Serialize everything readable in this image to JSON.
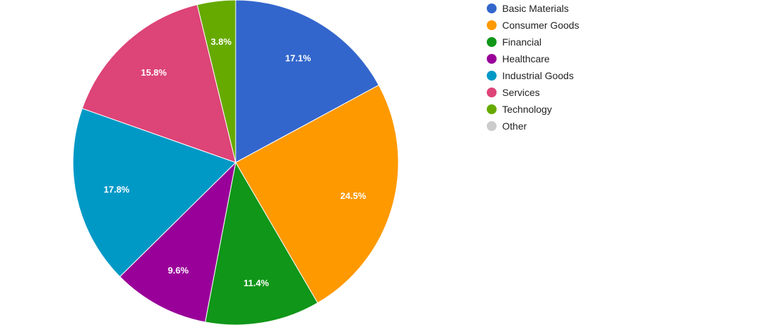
{
  "chart_data": {
    "type": "pie",
    "title": "",
    "slices": [
      {
        "label": "Basic Materials",
        "value": 17.1,
        "display": "17.1%",
        "color": "#3366cc"
      },
      {
        "label": "Consumer Goods",
        "value": 24.5,
        "display": "24.5%",
        "color": "#ff9900"
      },
      {
        "label": "Financial",
        "value": 11.4,
        "display": "11.4%",
        "color": "#109618"
      },
      {
        "label": "Healthcare",
        "value": 9.6,
        "display": "9.6%",
        "color": "#990099"
      },
      {
        "label": "Industrial Goods",
        "value": 17.8,
        "display": "17.8%",
        "color": "#0099c6"
      },
      {
        "label": "Services",
        "value": 15.8,
        "display": "15.8%",
        "color": "#dd4477"
      },
      {
        "label": "Technology",
        "value": 3.8,
        "display": "3.8%",
        "color": "#66aa00"
      },
      {
        "label": "Other",
        "value": 0,
        "display": "",
        "color": "#cccccc"
      }
    ],
    "legend": "right",
    "start_angle_deg": 0,
    "direction": "clockwise"
  }
}
